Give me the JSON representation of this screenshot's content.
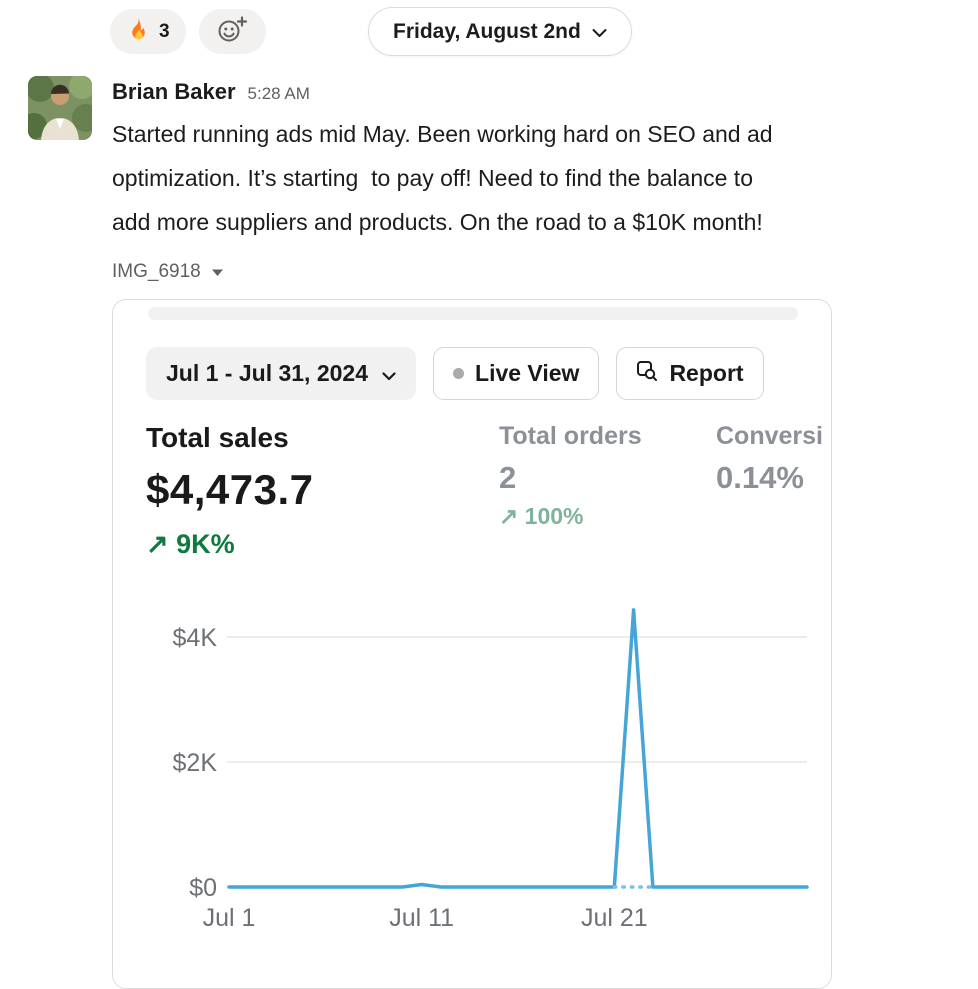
{
  "reactions": {
    "fire": {
      "icon": "fire-emoji",
      "count": "3"
    }
  },
  "date_divider": {
    "label": "Friday, August 2nd"
  },
  "message": {
    "author": "Brian Baker",
    "timestamp": "5:28 AM",
    "text_lines": [
      "Started running ads mid May. Been working hard on SEO and ad",
      "optimization. It’s starting  to pay off! Need to find the balance to",
      "add more suppliers and products. On the road to a $10K month!"
    ],
    "attachment_name": "IMG_6918"
  },
  "dashboard": {
    "date_range": "Jul 1 - Jul 31, 2024",
    "live_view_label": "Live View",
    "report_label": "Report",
    "metrics": {
      "total_sales": {
        "label": "Total sales",
        "value": "$4,473.7",
        "delta": "↗ 9K%"
      },
      "total_orders": {
        "label": "Total orders",
        "value": "2",
        "delta": "↗ 100%"
      },
      "conversion": {
        "label": "Conversi",
        "value": "0.14%"
      }
    },
    "colors": {
      "sales_delta_green": "#0e7a3d",
      "orders_delta_green": "#7fb39b",
      "line_blue": "#45a5d6",
      "muted_gray_text": "#8b9196"
    }
  },
  "chart_data": {
    "type": "line",
    "title": "Total sales over time (Jul 1 - Jul 31, 2024)",
    "x_unit": "day of July 2024",
    "x_range": [
      "Jul 1",
      "Jul 31"
    ],
    "values": [
      0,
      0,
      0,
      0,
      0,
      0,
      0,
      0,
      0,
      0,
      39.7,
      0,
      0,
      0,
      0,
      0,
      0,
      0,
      0,
      0,
      0,
      4434,
      0,
      0,
      0,
      0,
      0,
      0,
      0,
      0,
      0
    ],
    "y_ticks": [
      {
        "label": "$0",
        "value": 0
      },
      {
        "label": "$2K",
        "value": 2000
      },
      {
        "label": "$4K",
        "value": 4000
      }
    ],
    "x_ticks": [
      {
        "label": "Jul 1",
        "day": 1
      },
      {
        "label": "Jul 11",
        "day": 11
      },
      {
        "label": "Jul 21",
        "day": 21
      }
    ],
    "ylim": [
      0,
      4000
    ],
    "grid": true,
    "legend": false,
    "line_color": "#45a5d6",
    "dashed_color": "#79c0e4",
    "dashed_segment_days": [
      21,
      23
    ]
  }
}
